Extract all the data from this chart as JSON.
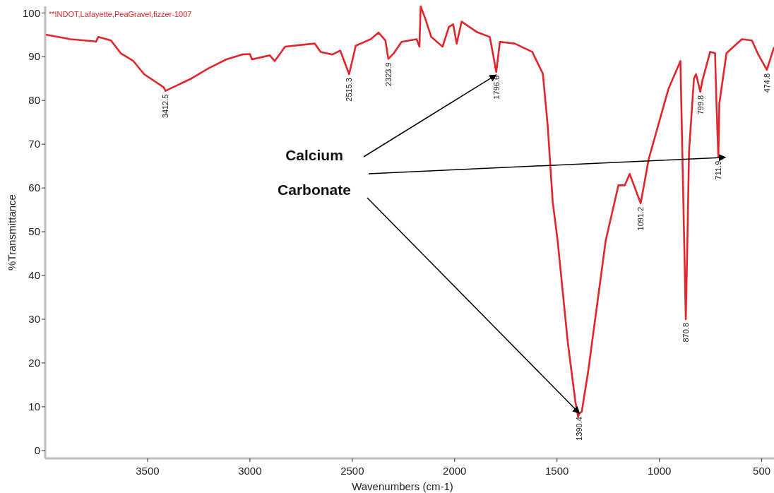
{
  "chart_data": {
    "type": "line",
    "xlabel": "Wavenumbers (cm-1)",
    "ylabel": "%Transmittance",
    "xlim": [
      4000,
      440
    ],
    "ylim": [
      -1.8,
      101.5
    ],
    "xticks": [
      3500,
      3000,
      2500,
      2000,
      1500,
      1000,
      500
    ],
    "yticks": [
      0,
      10,
      20,
      30,
      40,
      50,
      60,
      70,
      80,
      90,
      100
    ],
    "marker": "none",
    "line_style": "solid",
    "series": [
      {
        "color": "#e3262b",
        "x": [
          3993,
          3876,
          3762,
          3752,
          3741,
          3679,
          3631,
          3569,
          3517,
          3421,
          3412.5,
          3286,
          3200,
          3114,
          3038,
          3000,
          2990,
          2903,
          2879,
          2828,
          2683,
          2655,
          2597,
          2559,
          2515.3,
          2483,
          2410,
          2372,
          2338,
          2323.9,
          2297,
          2259,
          2186,
          2172,
          2166,
          2145,
          2114,
          2059,
          2028,
          2007,
          1990,
          1966,
          1890,
          1828,
          1796.6,
          1779,
          1707,
          1621,
          1569,
          1545,
          1521,
          1497,
          1448,
          1410,
          1397,
          1390.4,
          1379,
          1348,
          1262,
          1200,
          1169,
          1145,
          1091.2,
          1052,
          955,
          897,
          893,
          870.8,
          863,
          855,
          831,
          821,
          799.8,
          790,
          752,
          728,
          721,
          711.9,
          707,
          672,
          597,
          548,
          517,
          474.8,
          441
        ],
        "values": [
          95.0,
          94.0,
          93.5,
          93.4,
          94.5,
          93.7,
          90.8,
          89.0,
          86.0,
          83.0,
          82.2,
          85.0,
          87.4,
          89.4,
          90.5,
          90.6,
          89.4,
          90.3,
          89.0,
          92.3,
          93.0,
          91.1,
          90.5,
          91.4,
          86.0,
          92.5,
          94.0,
          95.5,
          93.7,
          89.5,
          90.8,
          93.4,
          94.0,
          92.3,
          101.5,
          98.9,
          94.5,
          92.3,
          96.8,
          97.4,
          93.0,
          98.0,
          95.6,
          94.5,
          86.5,
          93.4,
          93.0,
          91.1,
          86.1,
          74.0,
          56.8,
          48.0,
          25.0,
          11.1,
          7.7,
          8.5,
          8.9,
          18.0,
          48.0,
          60.6,
          60.6,
          63.2,
          56.5,
          66.6,
          82.7,
          89.0,
          79.8,
          30.0,
          48.0,
          68.4,
          85.0,
          86.0,
          82.0,
          84.5,
          91.1,
          90.8,
          79.3,
          67.0,
          79.3,
          90.8,
          94.0,
          93.7,
          90.5,
          87.0,
          92.0
        ]
      }
    ],
    "annotations": [
      "**INDOT,Lafayette,PeaGravel,fizzer-1007",
      "Calcium Carbonate",
      {
        "text": "3412.5",
        "x": 3412.5,
        "y": 82.2
      },
      {
        "text": "2515.3",
        "x": 2515.3,
        "y": 86.0
      },
      {
        "text": "2323.9",
        "x": 2323.9,
        "y": 89.5
      },
      {
        "text": "1796.6",
        "x": 1796.6,
        "y": 86.5
      },
      {
        "text": "1390.4",
        "x": 1390.4,
        "y": 8.5
      },
      {
        "text": "1091.2",
        "x": 1091.2,
        "y": 56.5
      },
      {
        "text": "870.8",
        "x": 870.8,
        "y": 30.0
      },
      {
        "text": "799.8",
        "x": 799.8,
        "y": 82.0
      },
      {
        "text": "711.9",
        "x": 711.9,
        "y": 67.0
      },
      {
        "text": "474.8",
        "x": 474.8,
        "y": 87.0
      }
    ]
  }
}
